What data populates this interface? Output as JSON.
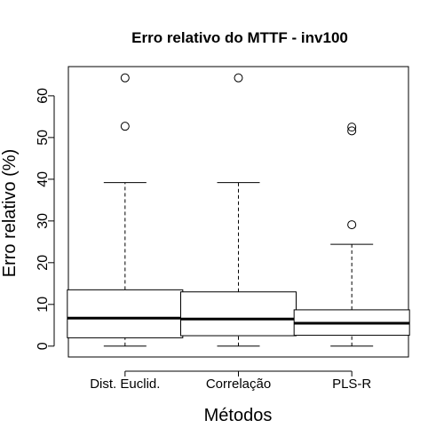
{
  "chart_data": {
    "type": "boxplot",
    "title": "Erro relativo do MTTF - inv100",
    "xlabel": "Métodos",
    "ylabel": "Erro relativo (%)",
    "ylim": [
      -2.6,
      67
    ],
    "yticks": [
      0,
      10,
      20,
      30,
      40,
      50,
      60
    ],
    "grid": false,
    "categories": [
      "Dist. Euclid.",
      "Correlação",
      "PLS-R"
    ],
    "boxes": [
      {
        "name": "Dist. Euclid.",
        "whisker_low": 0.0,
        "q1": 2.0,
        "median": 6.7,
        "q3": 13.5,
        "whisker_high": 39.2,
        "outliers": [
          52.7,
          64.3
        ]
      },
      {
        "name": "Correlação",
        "whisker_low": 0.0,
        "q1": 2.5,
        "median": 6.5,
        "q3": 13.0,
        "whisker_high": 39.2,
        "outliers": [
          64.3
        ]
      },
      {
        "name": "PLS-R",
        "whisker_low": 0.0,
        "q1": 2.6,
        "median": 5.5,
        "q3": 8.7,
        "whisker_high": 24.4,
        "outliers": [
          29.1,
          51.6,
          52.5
        ]
      }
    ]
  }
}
